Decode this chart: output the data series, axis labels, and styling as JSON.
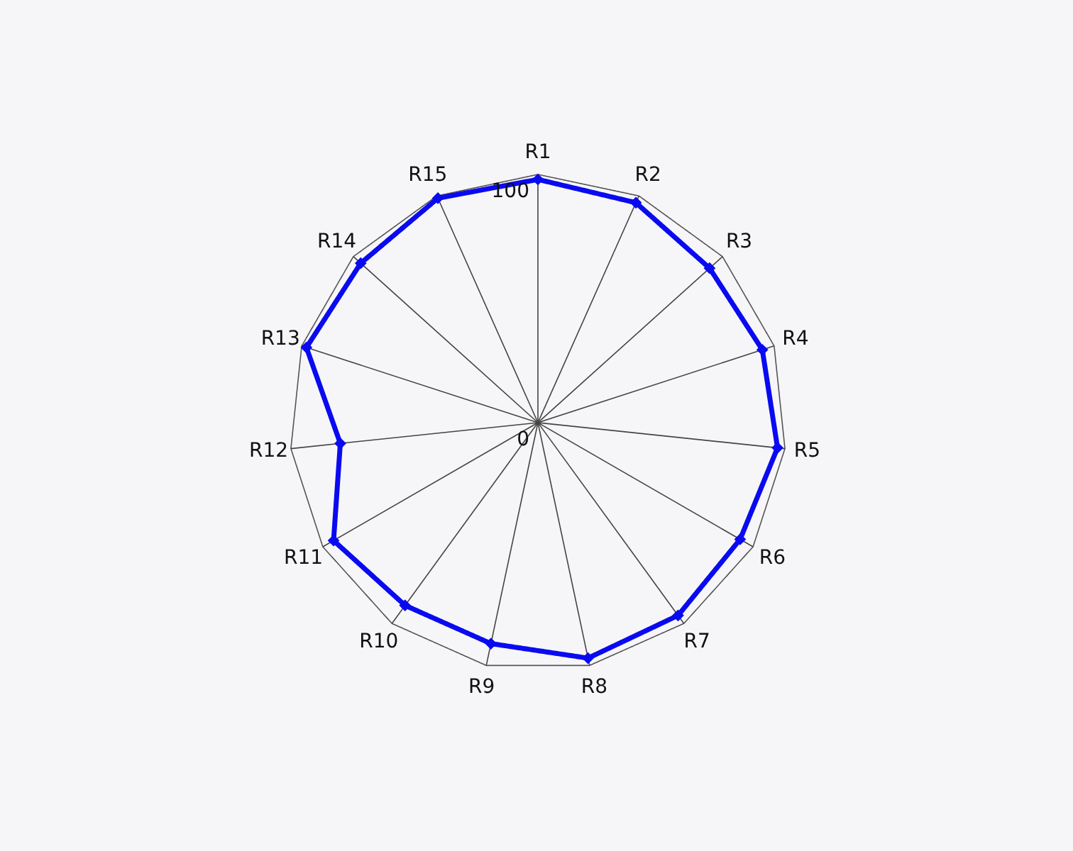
{
  "chart_data": {
    "type": "radar",
    "categories": [
      "R1",
      "R2",
      "R3",
      "R4",
      "R5",
      "R6",
      "R7",
      "R8",
      "R9",
      "R10",
      "R11",
      "R12",
      "R13",
      "R14",
      "R15"
    ],
    "series": [
      {
        "color": "#0a0af0",
        "values": [
          98,
          97,
          93,
          95,
          97,
          94,
          96,
          97,
          91,
          91,
          95,
          80,
          98,
          96,
          99
        ]
      }
    ],
    "ylim": [
      0,
      100
    ],
    "yticks": [
      0,
      100
    ],
    "grid": true,
    "marker": "diamond",
    "line_style": "solid"
  }
}
